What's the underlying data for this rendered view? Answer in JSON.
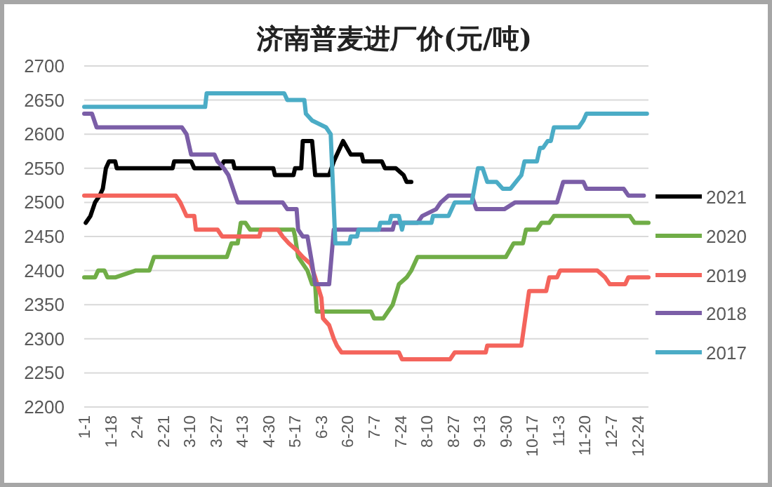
{
  "chart_data": {
    "type": "line",
    "title": "济南普麦进厂价(元/吨)",
    "xlim": [
      "--01-01",
      "--12-31"
    ],
    "xticks": [
      {
        "value": "--01-01",
        "label": "1-1"
      },
      {
        "value": "--01-18",
        "label": "1-18"
      },
      {
        "value": "--02-04",
        "label": "2-4"
      },
      {
        "value": "--02-21",
        "label": "2-21"
      },
      {
        "value": "--03-10",
        "label": "3-10"
      },
      {
        "value": "--03-27",
        "label": "3-27"
      },
      {
        "value": "--04-13",
        "label": "4-13"
      },
      {
        "value": "--04-30",
        "label": "4-30"
      },
      {
        "value": "--05-17",
        "label": "5-17"
      },
      {
        "value": "--06-03",
        "label": "6-3"
      },
      {
        "value": "--06-20",
        "label": "6-20"
      },
      {
        "value": "--07-07",
        "label": "7-7"
      },
      {
        "value": "--07-24",
        "label": "7-24"
      },
      {
        "value": "--08-10",
        "label": "8-10"
      },
      {
        "value": "--08-27",
        "label": "8-27"
      },
      {
        "value": "--09-13",
        "label": "9-13"
      },
      {
        "value": "--09-30",
        "label": "9-30"
      },
      {
        "value": "--10-17",
        "label": "10-17"
      },
      {
        "value": "--11-03",
        "label": "11-3"
      },
      {
        "value": "--11-20",
        "label": "11-20"
      },
      {
        "value": "--12-07",
        "label": "12-7"
      },
      {
        "value": "--12-24",
        "label": "12-24"
      }
    ],
    "ylim": [
      2200,
      2700
    ],
    "yticks": [
      2200,
      2250,
      2300,
      2350,
      2400,
      2450,
      2500,
      2550,
      2600,
      2650,
      2700
    ],
    "grid": "y",
    "legend": "right",
    "marker": "none",
    "line_style": "solid",
    "series": [
      {
        "name": "2021",
        "color": "#000000",
        "x": [
          "--01-02",
          "--01-05",
          "--01-08",
          "--01-11",
          "--01-13",
          "--01-15",
          "--01-17",
          "--01-21",
          "--01-22",
          "--02-27",
          "--02-28",
          "--03-11",
          "--03-13",
          "--03-30",
          "--04-01",
          "--04-07",
          "--04-08",
          "--05-03",
          "--05-04",
          "--05-16",
          "--05-17",
          "--05-21",
          "--05-22",
          "--05-28",
          "--05-30",
          "--06-08",
          "--06-11",
          "--06-17",
          "--06-22",
          "--06-29",
          "--06-30",
          "--07-12",
          "--07-14",
          "--07-21",
          "--07-26",
          "--07-28",
          "--07-31"
        ],
        "values": [
          2470,
          2480,
          2500,
          2510,
          2520,
          2550,
          2560,
          2560,
          2550,
          2550,
          2560,
          2560,
          2550,
          2550,
          2560,
          2560,
          2550,
          2550,
          2540,
          2540,
          2550,
          2550,
          2590,
          2590,
          2540,
          2540,
          2560,
          2590,
          2570,
          2570,
          2560,
          2560,
          2550,
          2550,
          2540,
          2530,
          2530
        ]
      },
      {
        "name": "2020",
        "color": "#70ad47",
        "x": [
          "--01-01",
          "--01-08",
          "--01-10",
          "--01-14",
          "--01-16",
          "--01-21",
          "--02-03",
          "--02-12",
          "--02-15",
          "--04-03",
          "--04-06",
          "--04-10",
          "--04-12",
          "--04-15",
          "--04-18",
          "--05-16",
          "--05-17",
          "--05-19",
          "--05-22",
          "--05-25",
          "--05-28",
          "--05-30",
          "--05-31",
          "--07-05",
          "--07-07",
          "--07-13",
          "--07-16",
          "--07-19",
          "--07-23",
          "--07-28",
          "--07-31",
          "--08-04",
          "--09-30",
          "--10-05",
          "--10-11",
          "--10-13",
          "--10-20",
          "--10-23",
          "--10-28",
          "--10-31",
          "--12-19",
          "--12-22",
          "--12-31"
        ],
        "values": [
          2390,
          2390,
          2400,
          2400,
          2390,
          2390,
          2400,
          2400,
          2420,
          2420,
          2440,
          2440,
          2470,
          2470,
          2460,
          2460,
          2450,
          2420,
          2410,
          2400,
          2380,
          2380,
          2340,
          2340,
          2330,
          2330,
          2340,
          2350,
          2380,
          2390,
          2400,
          2420,
          2420,
          2440,
          2440,
          2460,
          2460,
          2470,
          2470,
          2480,
          2480,
          2470,
          2470
        ]
      },
      {
        "name": "2019",
        "color": "#f4645c",
        "x": [
          "--01-01",
          "--03-01",
          "--03-04",
          "--03-06",
          "--03-08",
          "--03-13",
          "--03-14",
          "--03-28",
          "--03-31",
          "--04-24",
          "--04-25",
          "--05-06",
          "--05-09",
          "--05-13",
          "--05-18",
          "--05-22",
          "--05-27",
          "--05-30",
          "--06-03",
          "--06-04",
          "--06-08",
          "--06-11",
          "--06-13",
          "--06-16",
          "--07-23",
          "--07-25",
          "--08-25",
          "--08-28",
          "--09-17",
          "--09-18",
          "--10-10",
          "--10-15",
          "--10-26",
          "--10-28",
          "--11-02",
          "--11-04",
          "--11-28",
          "--12-03",
          "--12-06",
          "--12-16",
          "--12-18",
          "--12-31"
        ],
        "values": [
          2510,
          2510,
          2500,
          2490,
          2480,
          2480,
          2460,
          2460,
          2450,
          2450,
          2460,
          2460,
          2450,
          2440,
          2430,
          2420,
          2410,
          2390,
          2360,
          2330,
          2320,
          2300,
          2290,
          2280,
          2280,
          2270,
          2270,
          2280,
          2280,
          2290,
          2290,
          2370,
          2370,
          2390,
          2390,
          2400,
          2400,
          2390,
          2380,
          2380,
          2390,
          2390
        ]
      },
      {
        "name": "2018",
        "color": "#7b5ea7",
        "x": [
          "--01-01",
          "--01-06",
          "--01-09",
          "--03-05",
          "--03-08",
          "--03-11",
          "--03-26",
          "--03-28",
          "--04-01",
          "--04-04",
          "--04-07",
          "--04-10",
          "--05-09",
          "--05-12",
          "--05-18",
          "--05-19",
          "--05-22",
          "--05-25",
          "--05-28",
          "--05-30",
          "--06-08",
          "--06-11",
          "--07-19",
          "--07-20",
          "--08-04",
          "--08-07",
          "--08-16",
          "--08-19",
          "--08-24",
          "--09-08",
          "--09-11",
          "--09-29",
          "--10-06",
          "--11-02",
          "--11-06",
          "--11-19",
          "--11-21",
          "--12-15",
          "--12-18",
          "--12-28"
        ],
        "values": [
          2630,
          2630,
          2610,
          2610,
          2600,
          2570,
          2570,
          2560,
          2550,
          2540,
          2520,
          2500,
          2500,
          2490,
          2490,
          2460,
          2450,
          2450,
          2410,
          2380,
          2380,
          2460,
          2460,
          2470,
          2470,
          2480,
          2490,
          2500,
          2510,
          2510,
          2490,
          2490,
          2500,
          2500,
          2530,
          2530,
          2520,
          2520,
          2510,
          2510
        ]
      },
      {
        "name": "2017",
        "color": "#4bacc6",
        "x": [
          "--01-01",
          "--03-20",
          "--03-21",
          "--05-10",
          "--05-12",
          "--05-23",
          "--05-24",
          "--05-28",
          "--06-06",
          "--06-09",
          "--06-12",
          "--06-21",
          "--06-22",
          "--06-26",
          "--06-27",
          "--07-10",
          "--07-11",
          "--07-17",
          "--07-18",
          "--07-23",
          "--07-25",
          "--07-26",
          "--08-13",
          "--08-14",
          "--08-24",
          "--08-28",
          "--09-08",
          "--09-12",
          "--09-15",
          "--09-18",
          "--09-24",
          "--09-28",
          "--10-03",
          "--10-10",
          "--10-12",
          "--10-20",
          "--10-22",
          "--10-24",
          "--10-27",
          "--10-29",
          "--10-31",
          "--11-16",
          "--11-19",
          "--11-21",
          "--12-30"
        ],
        "values": [
          2640,
          2640,
          2660,
          2660,
          2650,
          2650,
          2630,
          2620,
          2610,
          2600,
          2440,
          2440,
          2450,
          2450,
          2460,
          2460,
          2470,
          2470,
          2480,
          2480,
          2460,
          2470,
          2470,
          2480,
          2480,
          2500,
          2500,
          2550,
          2550,
          2530,
          2530,
          2520,
          2520,
          2540,
          2560,
          2560,
          2580,
          2580,
          2590,
          2590,
          2610,
          2610,
          2620,
          2630,
          2630
        ]
      }
    ]
  }
}
